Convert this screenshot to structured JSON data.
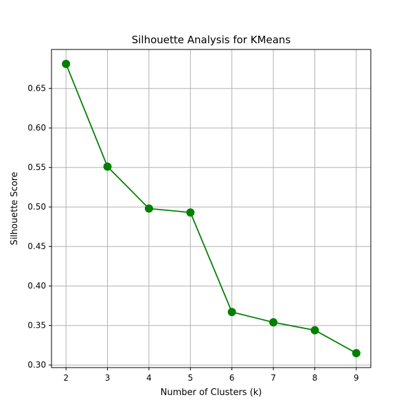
{
  "chart_data": {
    "type": "line",
    "title": "Silhouette Analysis for KMeans",
    "xlabel": "Number of Clusters (k)",
    "ylabel": "Silhouette Score",
    "x": [
      2,
      3,
      4,
      5,
      6,
      7,
      8,
      9
    ],
    "series": [
      {
        "values": [
          0.681,
          0.551,
          0.498,
          0.493,
          0.367,
          0.354,
          0.344,
          0.315
        ]
      }
    ],
    "xticks": [
      "2",
      "3",
      "4",
      "5",
      "6",
      "7",
      "8",
      "9"
    ],
    "yticks": [
      "0.30",
      "0.35",
      "0.40",
      "0.45",
      "0.50",
      "0.55",
      "0.60",
      "0.65"
    ],
    "xlim": [
      1.65,
      9.35
    ],
    "ylim": [
      0.2967,
      0.6993
    ],
    "grid": true,
    "marker": "circle",
    "colors": {
      "line": "#008000",
      "grid": "#b0b0b0",
      "axis": "#000000"
    }
  }
}
